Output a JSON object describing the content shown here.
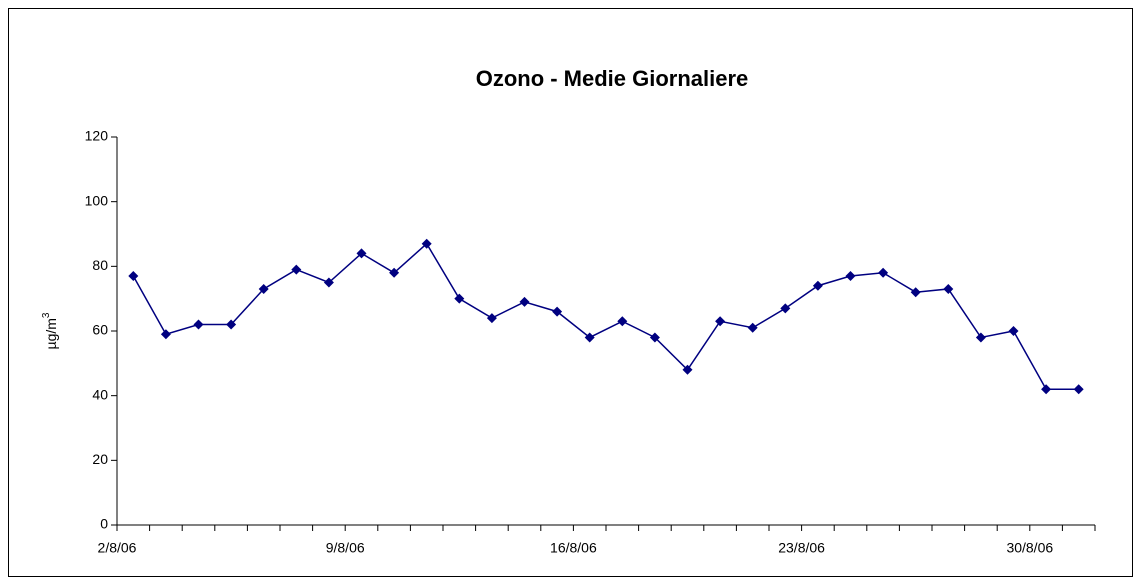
{
  "chart_data": {
    "type": "line",
    "title": "Ozono -  Medie Giornaliere",
    "y_label": {
      "text": "µg/m",
      "superscript": "3"
    },
    "categories": [
      "2/8/06",
      null,
      null,
      null,
      null,
      null,
      null,
      "9/8/06",
      null,
      null,
      null,
      null,
      null,
      null,
      "16/8/06",
      null,
      null,
      null,
      null,
      null,
      null,
      "23/8/06",
      null,
      null,
      null,
      null,
      null,
      null,
      "30/8/06",
      null
    ],
    "series": [
      {
        "color": "#000080",
        "values": [
          77,
          59,
          62,
          62,
          73,
          79,
          75,
          84,
          78,
          87,
          70,
          64,
          69,
          66,
          58,
          63,
          58,
          48,
          63,
          61,
          67,
          74,
          77,
          78,
          72,
          73,
          58,
          60,
          42,
          42
        ]
      }
    ],
    "ylim": [
      0,
      120
    ],
    "yticks": [
      0,
      20,
      40,
      60,
      80,
      100,
      120
    ]
  }
}
